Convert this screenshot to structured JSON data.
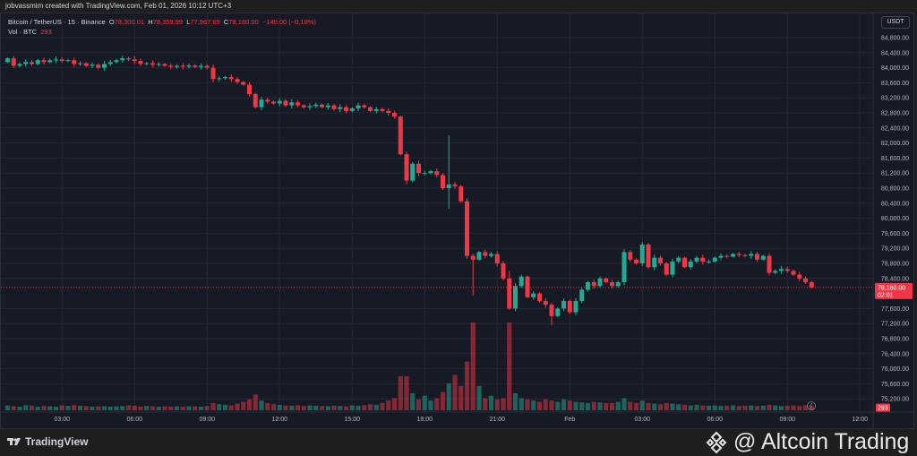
{
  "credit": "jobvassmim created with TradingView.com, Feb 01, 2026 10:12 UTC+3",
  "legend": {
    "symbol": "Bitcoin / TetherUS · 15 · Binance",
    "o_label": "O",
    "o": "78,300.01",
    "h_label": "H",
    "h": "78,359.99",
    "l_label": "L",
    "l": "77,967.69",
    "c_label": "C",
    "c": "78,160.00",
    "change": "−140.00 (−0.18%)",
    "vol_label": "Vol · BTC",
    "vol": "293"
  },
  "currency": "USDT",
  "last_price": {
    "price": "78,160.00",
    "countdown": "02:01",
    "value": 78160
  },
  "volume_badge": "293",
  "footer": {
    "brand": "TradingView",
    "watermark": "@ Altcoin Trading"
  },
  "colors": {
    "up": "#22ab94",
    "down": "#f23645",
    "bg": "#161a25",
    "grid": "#232733"
  },
  "chart_data": {
    "type": "candlestick",
    "interval": "15",
    "ylim": [
      75000,
      85000
    ],
    "price_ticks": [
      "84,800.00",
      "84,400.00",
      "84,000.00",
      "83,600.00",
      "83,200.00",
      "82,800.00",
      "82,400.00",
      "82,000.00",
      "81,600.00",
      "81,200.00",
      "80,800.00",
      "80,400.00",
      "80,000.00",
      "79,600.00",
      "79,200.00",
      "78,800.00",
      "78,400.00",
      "77,600.00",
      "77,200.00",
      "76,800.00",
      "76,400.00",
      "76,000.00",
      "75,600.00",
      "75,200.00"
    ],
    "time_ticks": [
      {
        "i": 9,
        "label": "03:00"
      },
      {
        "i": 21,
        "label": "06:00"
      },
      {
        "i": 33,
        "label": "09:00"
      },
      {
        "i": 45,
        "label": "12:00"
      },
      {
        "i": 57,
        "label": "15:00"
      },
      {
        "i": 69,
        "label": "18:00"
      },
      {
        "i": 81,
        "label": "21:00"
      },
      {
        "i": 93,
        "label": "Feb"
      },
      {
        "i": 105,
        "label": "03:00"
      },
      {
        "i": 117,
        "label": "06:00"
      },
      {
        "i": 129,
        "label": "09:00"
      },
      {
        "i": 141,
        "label": "12:00"
      }
    ],
    "first_open": 84150,
    "closes": [
      84250,
      84050,
      84100,
      84150,
      84100,
      84200,
      84150,
      84200,
      84220,
      84180,
      84200,
      84100,
      84120,
      84050,
      84080,
      84000,
      84100,
      84150,
      84200,
      84250,
      84220,
      84180,
      84100,
      84120,
      84080,
      84100,
      84050,
      84020,
      84050,
      84030,
      84060,
      84020,
      84050,
      84000,
      83700,
      83720,
      83750,
      83700,
      83620,
      83550,
      83300,
      82950,
      83150,
      83100,
      83050,
      83120,
      83000,
      83080,
      83000,
      82950,
      82980,
      83020,
      82950,
      83000,
      82900,
      82950,
      82850,
      82920,
      83000,
      82950,
      82850,
      82900,
      82850,
      82800,
      82700,
      81700,
      81000,
      81450,
      81200,
      81200,
      81250,
      81150,
      80800,
      80900,
      80850,
      80450,
      79000,
      78900,
      79100,
      79000,
      79050,
      78800,
      78400,
      77600,
      78200,
      78450,
      77900,
      78000,
      77800,
      77700,
      77400,
      77600,
      77800,
      77500,
      77800,
      78100,
      78300,
      78200,
      78400,
      78300,
      78200,
      78300,
      79100,
      78900,
      78800,
      79300,
      78700,
      78950,
      78800,
      78500,
      78850,
      78950,
      78700,
      78850,
      78950,
      78850,
      78850,
      78950,
      79000,
      78980,
      79050,
      79020,
      79000,
      79050,
      78900,
      79000,
      78550,
      78600,
      78650,
      78600,
      78500,
      78400,
      78300,
      78160
    ],
    "wick_extremes": {
      "73": {
        "high": 82200,
        "low": 80250
      },
      "77": {
        "low": 77950
      },
      "66": {
        "low": 80900
      },
      "83": {
        "high": 78600
      },
      "90": {
        "low": 77150
      }
    },
    "volumes": [
      400,
      350,
      300,
      420,
      380,
      300,
      350,
      330,
      300,
      400,
      360,
      420,
      380,
      350,
      300,
      320,
      340,
      310,
      330,
      350,
      400,
      380,
      300,
      350,
      330,
      300,
      320,
      310,
      330,
      300,
      340,
      320,
      300,
      350,
      600,
      500,
      450,
      400,
      550,
      700,
      900,
      1300,
      800,
      600,
      500,
      450,
      400,
      380,
      420,
      350,
      400,
      380,
      360,
      340,
      380,
      350,
      320,
      400,
      380,
      420,
      500,
      450,
      600,
      800,
      1000,
      2800,
      2800,
      1400,
      900,
      1200,
      800,
      1000,
      1500,
      2200,
      2900,
      2000,
      4000,
      7200,
      2000,
      1000,
      1200,
      900,
      1000,
      7200,
      1400,
      1000,
      900,
      800,
      700,
      900,
      800,
      700,
      900,
      800,
      700,
      650,
      600,
      700,
      650,
      600,
      600,
      700,
      1000,
      700,
      600,
      800,
      600,
      550,
      500,
      600,
      550,
      500,
      450,
      400,
      450,
      400,
      380,
      400,
      350,
      380,
      400,
      350,
      380,
      400,
      350,
      380,
      450,
      400,
      350,
      380,
      400,
      350,
      420,
      293
    ]
  }
}
